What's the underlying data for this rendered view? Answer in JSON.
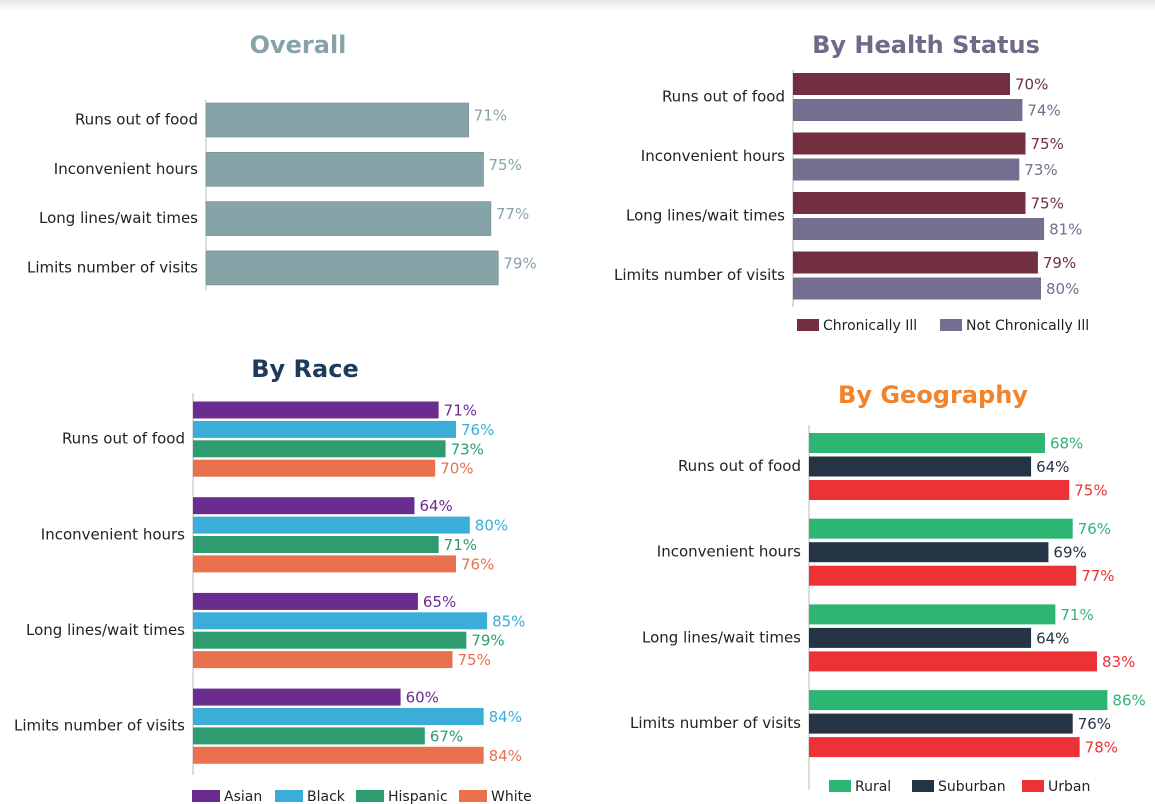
{
  "chart_data": [
    {
      "type": "bar",
      "orientation": "horizontal",
      "title": "Overall",
      "categories": [
        "Runs out of food",
        "Inconvenient hours",
        "Long lines/wait times",
        "Limits number of visits"
      ],
      "values": [
        71,
        75,
        77,
        79
      ],
      "value_labels": [
        "71%",
        "75%",
        "77%",
        "79%"
      ],
      "color": "#86a4a7"
    },
    {
      "type": "bar",
      "orientation": "horizontal",
      "title": "By Health Status",
      "categories": [
        "Runs out of food",
        "Inconvenient hours",
        "Long lines/wait times",
        "Limits number of visits"
      ],
      "series": [
        {
          "name": "Chronically Ill",
          "color": "#722f3f",
          "values": [
            70,
            75,
            75,
            79
          ],
          "value_labels": [
            "70%",
            "75%",
            "75%",
            "79%"
          ]
        },
        {
          "name": "Not Chronically Ill",
          "color": "#756e8e",
          "values": [
            74,
            73,
            81,
            80
          ],
          "value_labels": [
            "74%",
            "73%",
            "81%",
            "80%"
          ]
        }
      ]
    },
    {
      "type": "bar",
      "orientation": "horizontal",
      "title": "By Race",
      "categories": [
        "Runs out of food",
        "Inconvenient hours",
        "Long lines/wait times",
        "Limits number of visits"
      ],
      "series": [
        {
          "name": "Asian",
          "color": "#6a2d8f",
          "values": [
            71,
            64,
            65,
            60
          ],
          "value_labels": [
            "71%",
            "64%",
            "65%",
            "60%"
          ]
        },
        {
          "name": "Black",
          "color": "#3aaed8",
          "values": [
            76,
            80,
            85,
            84
          ],
          "value_labels": [
            "76%",
            "80%",
            "85%",
            "84%"
          ]
        },
        {
          "name": "Hispanic",
          "color": "#2e9c6e",
          "values": [
            73,
            71,
            79,
            67
          ],
          "value_labels": [
            "73%",
            "71%",
            "79%",
            "67%"
          ]
        },
        {
          "name": "White",
          "color": "#e9714d",
          "values": [
            70,
            76,
            75,
            84
          ],
          "value_labels": [
            "70%",
            "76%",
            "75%",
            "84%"
          ]
        }
      ]
    },
    {
      "type": "bar",
      "orientation": "horizontal",
      "title": "By Geography",
      "categories": [
        "Runs out of food",
        "Inconvenient hours",
        "Long lines/wait times",
        "Limits number of visits"
      ],
      "series": [
        {
          "name": "Rural",
          "color": "#2db673",
          "values": [
            68,
            76,
            71,
            86
          ],
          "value_labels": [
            "68%",
            "76%",
            "71%",
            "86%"
          ]
        },
        {
          "name": "Suburban",
          "color": "#253444",
          "values": [
            64,
            69,
            64,
            76
          ],
          "value_labels": [
            "64%",
            "69%",
            "64%",
            "76%"
          ]
        },
        {
          "name": "Urban",
          "color": "#ec3237",
          "values": [
            75,
            77,
            83,
            78
          ],
          "value_labels": [
            "75%",
            "77%",
            "83%",
            "78%"
          ]
        }
      ]
    }
  ]
}
